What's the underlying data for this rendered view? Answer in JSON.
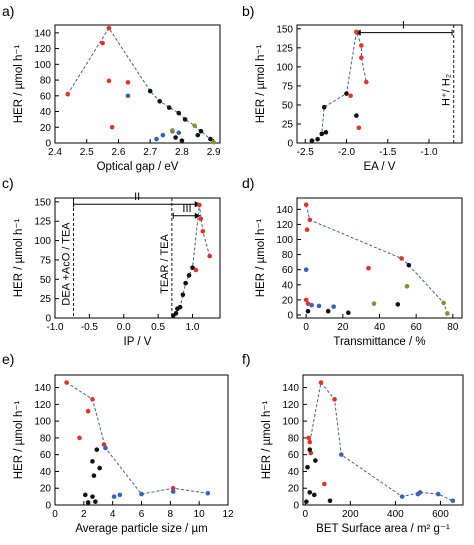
{
  "colors": {
    "red": "#e8302a",
    "black": "#111111",
    "blue": "#3563b8",
    "olive": "#8a8f2b",
    "dash": "#4a5d8c"
  },
  "chart_data": [
    {
      "type": "scatter",
      "label": "a)",
      "xlabel": "Optical gap / eV",
      "ylabel": "HER / µmol h⁻¹",
      "xlim": [
        2.4,
        2.92
      ],
      "ylim": [
        0,
        150
      ],
      "xticks": [
        "2.4",
        "2.5",
        "2.6",
        "2.7",
        "2.8",
        "2.9"
      ],
      "xtick_values": [
        2.4,
        2.5,
        2.6,
        2.7,
        2.8,
        2.9
      ],
      "yticks": [
        "0",
        "20",
        "40",
        "60",
        "80",
        "100",
        "120",
        "140"
      ],
      "ytick_values": [
        0,
        20,
        40,
        60,
        80,
        100,
        120,
        140
      ],
      "points": [
        {
          "x": 2.44,
          "y": 62,
          "c": "red"
        },
        {
          "x": 2.55,
          "y": 127,
          "c": "red"
        },
        {
          "x": 2.57,
          "y": 146,
          "c": "red"
        },
        {
          "x": 2.57,
          "y": 79,
          "c": "red"
        },
        {
          "x": 2.58,
          "y": 20,
          "c": "red"
        },
        {
          "x": 2.63,
          "y": 77,
          "c": "red"
        },
        {
          "x": 2.63,
          "y": 60,
          "c": "blue"
        },
        {
          "x": 2.72,
          "y": 5,
          "c": "blue"
        },
        {
          "x": 2.74,
          "y": 10,
          "c": "blue"
        },
        {
          "x": 2.77,
          "y": 15,
          "c": "blue"
        },
        {
          "x": 2.79,
          "y": 13,
          "c": "blue"
        },
        {
          "x": 2.7,
          "y": 66,
          "c": "black"
        },
        {
          "x": 2.73,
          "y": 53,
          "c": "black"
        },
        {
          "x": 2.76,
          "y": 45,
          "c": "black"
        },
        {
          "x": 2.79,
          "y": 38,
          "c": "black"
        },
        {
          "x": 2.81,
          "y": 30,
          "c": "black"
        },
        {
          "x": 2.86,
          "y": 15,
          "c": "black"
        },
        {
          "x": 2.78,
          "y": 7,
          "c": "black"
        },
        {
          "x": 2.8,
          "y": 3,
          "c": "black"
        },
        {
          "x": 2.85,
          "y": 10,
          "c": "black"
        },
        {
          "x": 2.89,
          "y": 5,
          "c": "black"
        },
        {
          "x": 2.84,
          "y": 22,
          "c": "olive"
        },
        {
          "x": 2.77,
          "y": 16,
          "c": "olive"
        },
        {
          "x": 2.9,
          "y": 1,
          "c": "olive"
        }
      ],
      "dashed": [
        [
          2.44,
          62
        ],
        [
          2.57,
          146
        ],
        [
          2.7,
          66
        ],
        [
          2.73,
          53
        ],
        [
          2.79,
          38
        ],
        [
          2.81,
          30
        ],
        [
          2.84,
          22
        ],
        [
          2.86,
          15
        ],
        [
          2.89,
          5
        ],
        [
          2.9,
          1
        ]
      ],
      "annotations": []
    },
    {
      "type": "scatter",
      "label": "b)",
      "xlabel": "EA / V",
      "ylabel": "HER / µmol h⁻¹",
      "xlim": [
        -2.6,
        -0.6
      ],
      "ylim": [
        0,
        155
      ],
      "xticks": [
        "-2.5",
        "-2.0",
        "-1.5",
        "-1.0"
      ],
      "xtick_values": [
        -2.5,
        -2.0,
        -1.5,
        -1.0
      ],
      "yticks": [
        "0",
        "25",
        "50",
        "75",
        "100",
        "125",
        "150"
      ],
      "ytick_values": [
        0,
        25,
        50,
        75,
        100,
        125,
        150
      ],
      "points": [
        {
          "x": -2.42,
          "y": 3,
          "c": "black"
        },
        {
          "x": -2.35,
          "y": 5,
          "c": "black"
        },
        {
          "x": -2.3,
          "y": 12,
          "c": "black"
        },
        {
          "x": -2.25,
          "y": 14,
          "c": "black"
        },
        {
          "x": -2.27,
          "y": 47,
          "c": "black"
        },
        {
          "x": -2.0,
          "y": 65,
          "c": "black"
        },
        {
          "x": -1.88,
          "y": 36,
          "c": "black"
        },
        {
          "x": -1.88,
          "y": 146,
          "c": "red"
        },
        {
          "x": -1.82,
          "y": 128,
          "c": "red"
        },
        {
          "x": -1.82,
          "y": 112,
          "c": "red"
        },
        {
          "x": -1.95,
          "y": 62,
          "c": "red"
        },
        {
          "x": -1.76,
          "y": 80,
          "c": "red"
        },
        {
          "x": -1.85,
          "y": 20,
          "c": "red"
        }
      ],
      "dashed": [
        [
          -2.42,
          3
        ],
        [
          -2.35,
          5
        ],
        [
          -2.3,
          12
        ],
        [
          -2.27,
          47
        ],
        [
          -2.0,
          65
        ],
        [
          -1.88,
          146
        ],
        [
          -1.82,
          128
        ],
        [
          -1.82,
          112
        ],
        [
          -1.76,
          80
        ]
      ],
      "annotations": [
        {
          "type": "vline",
          "x": -0.7,
          "label": "H⁺/ H₂"
        },
        {
          "type": "arrow",
          "x1": -0.72,
          "x2": -1.9,
          "y": 145,
          "label": "I"
        }
      ]
    },
    {
      "type": "scatter",
      "label": "c)",
      "xlabel": "IP / V",
      "ylabel": "HER / µmol h⁻¹",
      "xlim": [
        -1.0,
        1.4
      ],
      "ylim": [
        0,
        155
      ],
      "xticks": [
        "-1.0",
        "-0.5",
        "0.0",
        "0.5",
        "1.0"
      ],
      "xtick_values": [
        -1.0,
        -0.5,
        0.0,
        0.5,
        1.0
      ],
      "yticks": [
        "0",
        "25",
        "50",
        "75",
        "100",
        "125",
        "150"
      ],
      "ytick_values": [
        0,
        25,
        50,
        75,
        100,
        125,
        150
      ],
      "points": [
        {
          "x": 0.72,
          "y": 3,
          "c": "black"
        },
        {
          "x": 0.76,
          "y": 6,
          "c": "black"
        },
        {
          "x": 0.78,
          "y": 12,
          "c": "black"
        },
        {
          "x": 0.82,
          "y": 14,
          "c": "black"
        },
        {
          "x": 0.86,
          "y": 30,
          "c": "black"
        },
        {
          "x": 0.9,
          "y": 45,
          "c": "black"
        },
        {
          "x": 0.95,
          "y": 55,
          "c": "black"
        },
        {
          "x": 1.0,
          "y": 65,
          "c": "black"
        },
        {
          "x": 1.1,
          "y": 146,
          "c": "red"
        },
        {
          "x": 1.12,
          "y": 128,
          "c": "red"
        },
        {
          "x": 1.15,
          "y": 112,
          "c": "red"
        },
        {
          "x": 1.05,
          "y": 62,
          "c": "red"
        },
        {
          "x": 1.25,
          "y": 80,
          "c": "red"
        }
      ],
      "dashed": [
        [
          0.72,
          3
        ],
        [
          0.76,
          6
        ],
        [
          0.82,
          14
        ],
        [
          0.86,
          30
        ],
        [
          0.9,
          45
        ],
        [
          1.0,
          65
        ],
        [
          1.1,
          146
        ],
        [
          1.15,
          112
        ],
        [
          1.25,
          80
        ]
      ],
      "annotations": [
        {
          "type": "vline",
          "x": -0.73,
          "label": "DEA +AcO / TEA"
        },
        {
          "type": "vline",
          "x": 0.7,
          "label": "TEAR / TEA"
        },
        {
          "type": "arrow",
          "x1": -0.73,
          "x2": 1.12,
          "y": 147,
          "label": "II"
        },
        {
          "type": "arrow",
          "x1": 0.72,
          "x2": 1.12,
          "y": 132,
          "label": "III"
        }
      ]
    },
    {
      "type": "scatter",
      "label": "d)",
      "xlabel": "Transmittance / %",
      "ylabel": "HER / µmol h⁻¹",
      "xlim": [
        -5,
        85
      ],
      "ylim": [
        -4,
        155
      ],
      "xticks": [
        "0",
        "20",
        "40",
        "60",
        "80"
      ],
      "xtick_values": [
        0,
        20,
        40,
        60,
        80
      ],
      "yticks": [
        "0",
        "20",
        "40",
        "60",
        "80",
        "100",
        "120",
        "140"
      ],
      "ytick_values": [
        0,
        20,
        40,
        60,
        80,
        100,
        120,
        140
      ],
      "points": [
        {
          "x": 0,
          "y": 146,
          "c": "red"
        },
        {
          "x": 2,
          "y": 126,
          "c": "red"
        },
        {
          "x": 0.5,
          "y": 113,
          "c": "red"
        },
        {
          "x": 52,
          "y": 75,
          "c": "red"
        },
        {
          "x": 34,
          "y": 62,
          "c": "red"
        },
        {
          "x": 0,
          "y": 20,
          "c": "red"
        },
        {
          "x": 1,
          "y": 15,
          "c": "red"
        },
        {
          "x": 56,
          "y": 66,
          "c": "black"
        },
        {
          "x": 50,
          "y": 14,
          "c": "black"
        },
        {
          "x": 23,
          "y": 3,
          "c": "black"
        },
        {
          "x": 12,
          "y": 5,
          "c": "black"
        },
        {
          "x": 1,
          "y": 5,
          "c": "black"
        },
        {
          "x": 0,
          "y": 60,
          "c": "blue"
        },
        {
          "x": 3,
          "y": 13,
          "c": "blue"
        },
        {
          "x": 7,
          "y": 12,
          "c": "blue"
        },
        {
          "x": 15,
          "y": 11,
          "c": "blue"
        },
        {
          "x": 37,
          "y": 15,
          "c": "olive"
        },
        {
          "x": 55,
          "y": 38,
          "c": "olive"
        },
        {
          "x": 75,
          "y": 16,
          "c": "olive"
        },
        {
          "x": 77,
          "y": 2,
          "c": "olive"
        }
      ],
      "dashed": [
        [
          0,
          146
        ],
        [
          2,
          126
        ],
        [
          52,
          75
        ],
        [
          56,
          66
        ],
        [
          75,
          16
        ],
        [
          77,
          2
        ]
      ],
      "annotations": []
    },
    {
      "type": "scatter",
      "label": "e)",
      "xlabel": "Average particle size / µm",
      "ylabel": "HER / µmol h⁻¹",
      "xlim": [
        0,
        12
      ],
      "ylim": [
        0,
        155
      ],
      "xticks": [
        "0",
        "2",
        "4",
        "6",
        "8",
        "10",
        "12"
      ],
      "xtick_values": [
        0,
        2,
        4,
        6,
        8,
        10,
        12
      ],
      "yticks": [
        "0",
        "20",
        "40",
        "60",
        "80",
        "100",
        "120",
        "140"
      ],
      "ytick_values": [
        0,
        20,
        40,
        60,
        80,
        100,
        120,
        140
      ],
      "points": [
        {
          "x": 0.8,
          "y": 146,
          "c": "red"
        },
        {
          "x": 2.6,
          "y": 126,
          "c": "red"
        },
        {
          "x": 2.3,
          "y": 112,
          "c": "red"
        },
        {
          "x": 1.7,
          "y": 80,
          "c": "red"
        },
        {
          "x": 3.4,
          "y": 72,
          "c": "red"
        },
        {
          "x": 8.2,
          "y": 20,
          "c": "red"
        },
        {
          "x": 3.5,
          "y": 68,
          "c": "blue"
        },
        {
          "x": 6.0,
          "y": 13,
          "c": "blue"
        },
        {
          "x": 4.5,
          "y": 12,
          "c": "blue"
        },
        {
          "x": 4.1,
          "y": 10,
          "c": "blue"
        },
        {
          "x": 10.6,
          "y": 14,
          "c": "blue"
        },
        {
          "x": 8.2,
          "y": 16,
          "c": "blue"
        },
        {
          "x": 2.9,
          "y": 66,
          "c": "black"
        },
        {
          "x": 2.6,
          "y": 52,
          "c": "black"
        },
        {
          "x": 3.1,
          "y": 44,
          "c": "black"
        },
        {
          "x": 2.1,
          "y": 12,
          "c": "black"
        },
        {
          "x": 2.6,
          "y": 10,
          "c": "black"
        },
        {
          "x": 2.8,
          "y": 4,
          "c": "black"
        },
        {
          "x": 2.3,
          "y": 3,
          "c": "black"
        },
        {
          "x": 2.7,
          "y": 35,
          "c": "black"
        }
      ],
      "dashed": [
        [
          0.8,
          146
        ],
        [
          2.6,
          126
        ],
        [
          3.5,
          68
        ],
        [
          6.0,
          13
        ],
        [
          8.2,
          20
        ],
        [
          10.6,
          14
        ]
      ],
      "annotations": []
    },
    {
      "type": "scatter",
      "label": "f)",
      "xlabel": "BET Surface area / m² g⁻¹",
      "ylabel": "HER / µmol h⁻¹",
      "xlim": [
        -10,
        700
      ],
      "ylim": [
        0,
        155
      ],
      "xticks": [
        "0",
        "200",
        "400",
        "600"
      ],
      "xtick_values": [
        0,
        200,
        400,
        600
      ],
      "yticks": [
        "0",
        "20",
        "40",
        "60",
        "80",
        "100",
        "120",
        "140"
      ],
      "ytick_values": [
        0,
        20,
        40,
        60,
        80,
        100,
        120,
        140
      ],
      "points": [
        {
          "x": 25,
          "y": 62,
          "c": "red"
        },
        {
          "x": 15,
          "y": 80,
          "c": "red"
        },
        {
          "x": 70,
          "y": 146,
          "c": "red"
        },
        {
          "x": 130,
          "y": 126,
          "c": "red"
        },
        {
          "x": 20,
          "y": 75,
          "c": "red"
        },
        {
          "x": 85,
          "y": 25,
          "c": "red"
        },
        {
          "x": 160,
          "y": 60,
          "c": "blue"
        },
        {
          "x": 430,
          "y": 10,
          "c": "blue"
        },
        {
          "x": 500,
          "y": 13,
          "c": "blue"
        },
        {
          "x": 510,
          "y": 15,
          "c": "blue"
        },
        {
          "x": 590,
          "y": 13,
          "c": "blue"
        },
        {
          "x": 655,
          "y": 5,
          "c": "blue"
        },
        {
          "x": 20,
          "y": 66,
          "c": "black"
        },
        {
          "x": 45,
          "y": 53,
          "c": "black"
        },
        {
          "x": 10,
          "y": 45,
          "c": "black"
        },
        {
          "x": 20,
          "y": 15,
          "c": "black"
        },
        {
          "x": 40,
          "y": 12,
          "c": "black"
        },
        {
          "x": 110,
          "y": 5,
          "c": "black"
        },
        {
          "x": 5,
          "y": 4,
          "c": "black"
        }
      ],
      "dashed": [
        [
          15,
          80
        ],
        [
          20,
          75
        ],
        [
          70,
          146
        ],
        [
          130,
          126
        ],
        [
          160,
          60
        ],
        [
          430,
          10
        ],
        [
          510,
          15
        ],
        [
          590,
          13
        ],
        [
          655,
          5
        ]
      ],
      "annotations": []
    }
  ]
}
